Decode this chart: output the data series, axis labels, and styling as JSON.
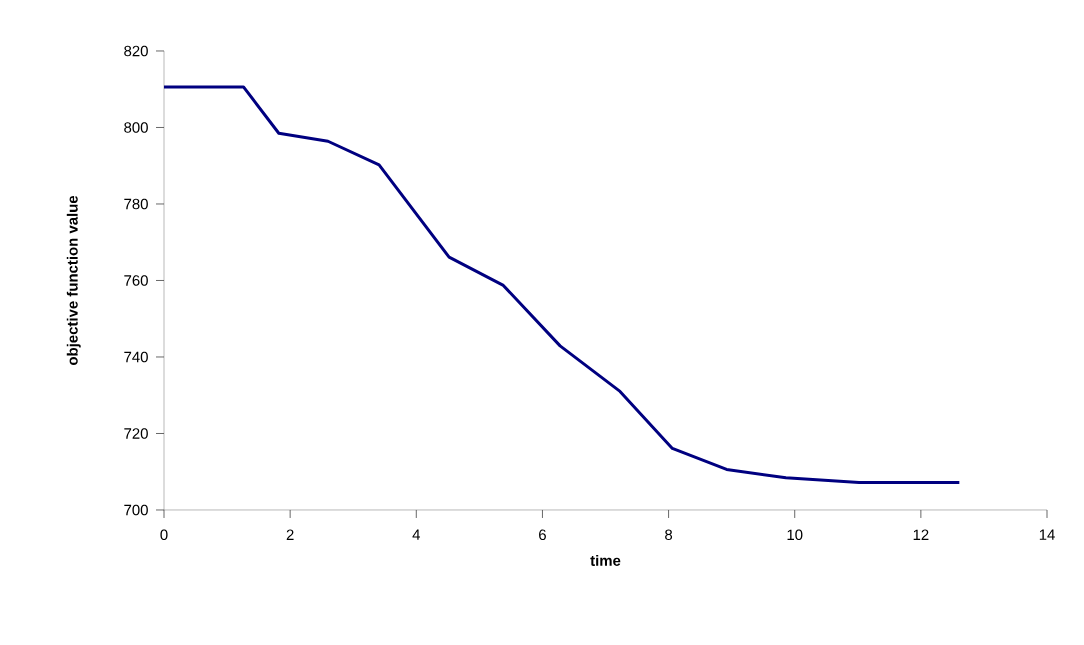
{
  "chart_data": {
    "type": "line",
    "xlabel": "time",
    "ylabel": "objective function value",
    "x": [
      0,
      0.71,
      1.26,
      1.82,
      2.6,
      3.41,
      4.52,
      5.38,
      6.28,
      7.23,
      8.06,
      8.92,
      9.86,
      11.02,
      11.54,
      12.11,
      12.61
    ],
    "series": [
      {
        "color": "#000080",
        "values": [
          810.6,
          810.6,
          810.6,
          798.5,
          796.4,
          790.2,
          766.1,
          758.7,
          742.9,
          731.0,
          716.1,
          710.6,
          708.4,
          707.2,
          707.2,
          707.2,
          707.2
        ]
      }
    ],
    "xlim": [
      0,
      14
    ],
    "xticks": [
      0,
      2,
      4,
      6,
      8,
      10,
      12,
      14
    ],
    "ylim": [
      700,
      820
    ],
    "yticks": [
      700,
      720,
      740,
      760,
      780,
      800,
      820
    ],
    "grid": false,
    "marker": "none",
    "line_style": "solid"
  }
}
